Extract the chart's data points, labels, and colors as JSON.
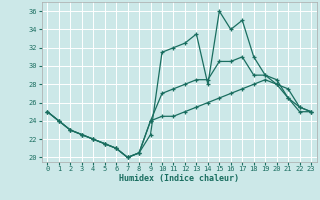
{
  "xlabel": "Humidex (Indice chaleur)",
  "bg_color": "#cce8e8",
  "grid_color": "#ffffff",
  "line_color": "#1a6e60",
  "xlim": [
    -0.5,
    23.5
  ],
  "ylim": [
    19.5,
    37
  ],
  "yticks": [
    20,
    22,
    24,
    26,
    28,
    30,
    32,
    34,
    36
  ],
  "xticks": [
    0,
    1,
    2,
    3,
    4,
    5,
    6,
    7,
    8,
    9,
    10,
    11,
    12,
    13,
    14,
    15,
    16,
    17,
    18,
    19,
    20,
    21,
    22,
    23
  ],
  "line1_x": [
    0,
    1,
    2,
    3,
    4,
    5,
    6,
    7,
    8,
    9,
    10,
    11,
    12,
    13,
    14,
    15,
    16,
    17,
    18,
    19,
    20,
    21,
    22,
    23
  ],
  "line1_y": [
    25.0,
    24.0,
    23.0,
    22.5,
    22.0,
    21.5,
    21.0,
    20.0,
    20.5,
    22.5,
    31.5,
    32.0,
    32.5,
    33.5,
    28.0,
    36.0,
    34.0,
    35.0,
    31.0,
    29.0,
    28.0,
    27.5,
    25.5,
    25.0
  ],
  "line2_x": [
    0,
    1,
    2,
    3,
    4,
    5,
    6,
    7,
    8,
    9,
    10,
    11,
    12,
    13,
    14,
    15,
    16,
    17,
    18,
    19,
    20,
    21,
    22,
    23
  ],
  "line2_y": [
    25.0,
    24.0,
    23.0,
    22.5,
    22.0,
    21.5,
    21.0,
    20.0,
    20.5,
    24.0,
    27.0,
    27.5,
    28.0,
    28.5,
    28.5,
    30.5,
    30.5,
    31.0,
    29.0,
    29.0,
    28.5,
    26.5,
    25.0,
    25.0
  ],
  "line3_x": [
    0,
    1,
    2,
    3,
    4,
    5,
    6,
    7,
    8,
    9,
    10,
    11,
    12,
    13,
    14,
    15,
    16,
    17,
    18,
    19,
    20,
    21,
    22,
    23
  ],
  "line3_y": [
    25.0,
    24.0,
    23.0,
    22.5,
    22.0,
    21.5,
    21.0,
    20.0,
    20.5,
    24.0,
    24.5,
    24.5,
    25.0,
    25.5,
    26.0,
    26.5,
    27.0,
    27.5,
    28.0,
    28.5,
    28.0,
    26.5,
    25.5,
    25.0
  ]
}
